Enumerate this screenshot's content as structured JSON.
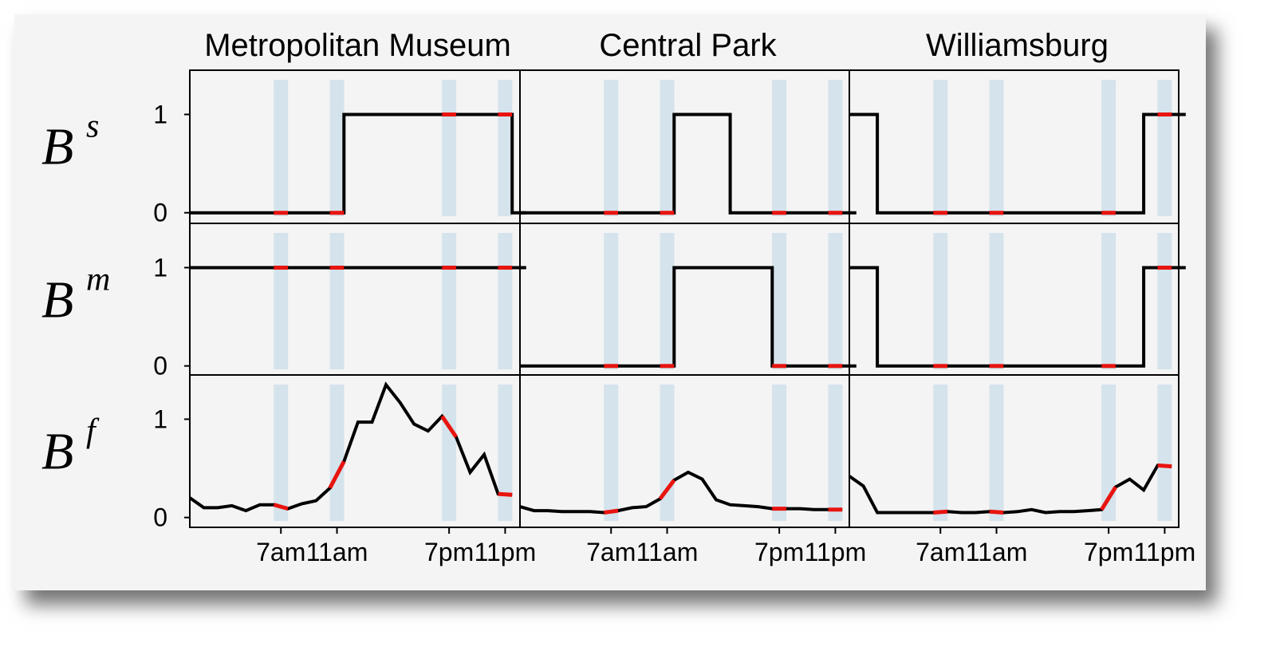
{
  "chart_data": {
    "type": "line",
    "columns": [
      "Metropolitan Museum",
      "Central Park",
      "Williamsburg"
    ],
    "rows": [
      {
        "label": "B",
        "sup": "s",
        "yticks": [
          "0",
          "1"
        ]
      },
      {
        "label": "B",
        "sup": "m",
        "yticks": [
          "0",
          "1"
        ]
      },
      {
        "label": "B",
        "sup": "f",
        "yticks": [
          "0",
          "1"
        ]
      }
    ],
    "x_tick_values": [
      7,
      11,
      19,
      23
    ],
    "x_tick_labels": [
      "7am",
      "11am",
      "7pm",
      "11pm"
    ],
    "xlim": [
      1,
      24.5
    ],
    "ylim": [
      -0.1,
      1.45
    ],
    "highlight_hours": [
      7,
      11,
      19,
      23
    ],
    "colors": {
      "line": "#000000",
      "highlight_segment": "#e8140f",
      "highlight_band": "#d5e3ec",
      "panel_bg": "#f4f4f4"
    },
    "grid": false,
    "panels": [
      [
        {
          "values": [
            0,
            0,
            0,
            0,
            0,
            0,
            0,
            0,
            0,
            0,
            0,
            1,
            1,
            1,
            1,
            1,
            1,
            1,
            1,
            1,
            1,
            1,
            1,
            0
          ]
        },
        {
          "values": [
            1,
            1,
            1,
            1,
            1,
            1,
            1,
            1,
            1,
            1,
            1,
            1,
            1,
            1,
            1,
            1,
            1,
            1,
            1,
            1,
            1,
            1,
            1,
            1
          ]
        },
        {
          "values": [
            0.2,
            0.1,
            0.1,
            0.12,
            0.07,
            0.13,
            0.13,
            0.09,
            0.14,
            0.17,
            0.3,
            0.57,
            0.97,
            0.97,
            1.35,
            1.17,
            0.95,
            0.88,
            1.03,
            0.82,
            0.46,
            0.64,
            0.24,
            0.23
          ]
        }
      ],
      [
        {
          "values": [
            0,
            0,
            0,
            0,
            0,
            0,
            0,
            0,
            0,
            0,
            0,
            1,
            1,
            1,
            1,
            0,
            0,
            0,
            0,
            0,
            0,
            0,
            0,
            0
          ]
        },
        {
          "values": [
            0,
            0,
            0,
            0,
            0,
            0,
            0,
            0,
            0,
            0,
            0,
            1,
            1,
            1,
            1,
            1,
            1,
            1,
            0,
            0,
            0,
            0,
            0,
            0
          ]
        },
        {
          "values": [
            0.11,
            0.07,
            0.07,
            0.06,
            0.06,
            0.06,
            0.05,
            0.07,
            0.1,
            0.11,
            0.19,
            0.38,
            0.46,
            0.39,
            0.18,
            0.13,
            0.12,
            0.11,
            0.09,
            0.09,
            0.09,
            0.08,
            0.08,
            0.08
          ]
        }
      ],
      [
        {
          "values": [
            1,
            1,
            0,
            0,
            0,
            0,
            0,
            0,
            0,
            0,
            0,
            0,
            0,
            0,
            0,
            0,
            0,
            0,
            0,
            0,
            0,
            1,
            1,
            1
          ]
        },
        {
          "values": [
            1,
            1,
            0,
            0,
            0,
            0,
            0,
            0,
            0,
            0,
            0,
            0,
            0,
            0,
            0,
            0,
            0,
            0,
            0,
            0,
            0,
            1,
            1,
            1
          ]
        },
        {
          "values": [
            0.42,
            0.32,
            0.05,
            0.05,
            0.05,
            0.05,
            0.05,
            0.06,
            0.05,
            0.05,
            0.06,
            0.05,
            0.06,
            0.08,
            0.05,
            0.06,
            0.06,
            0.07,
            0.08,
            0.31,
            0.39,
            0.28,
            0.53,
            0.52
          ]
        }
      ]
    ]
  }
}
